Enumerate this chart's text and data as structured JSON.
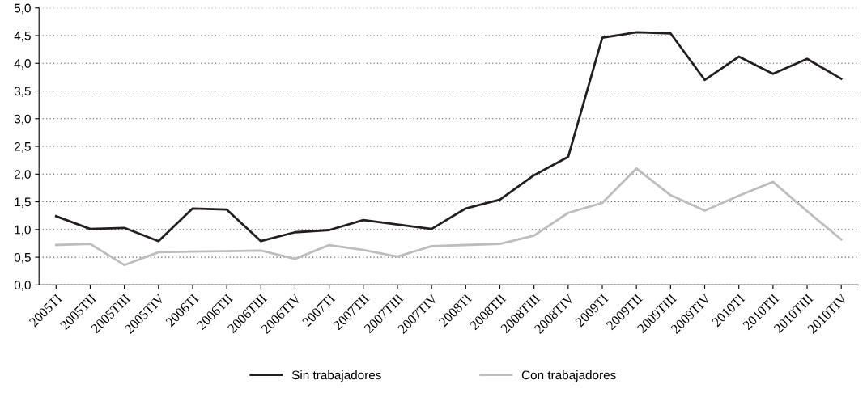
{
  "chart_data": {
    "type": "line",
    "categories": [
      "2005TI",
      "2005TII",
      "2005TIII",
      "2005TIV",
      "2006TI",
      "2006TII",
      "2006TIII",
      "2006TIV",
      "2007TI",
      "2007TII",
      "2007TIII",
      "2007TIV",
      "2008TI",
      "2008TII",
      "2008TIII",
      "2008TIV",
      "2009TI",
      "2009TII",
      "2009TIII",
      "2009TIV",
      "2010TI",
      "2010TII",
      "2010TIII",
      "2010TIV"
    ],
    "series": [
      {
        "name": "Sin trabajadores",
        "color": "#231f20",
        "values": [
          1.24,
          1.01,
          1.03,
          0.79,
          1.38,
          1.36,
          0.79,
          0.95,
          0.99,
          1.17,
          1.09,
          1.01,
          1.38,
          1.54,
          1.98,
          2.31,
          4.46,
          4.56,
          4.54,
          3.7,
          4.12,
          3.81,
          4.08,
          3.72
        ]
      },
      {
        "name": "Con trabajadores",
        "color": "#bdbdbd",
        "values": [
          0.72,
          0.74,
          0.36,
          0.59,
          0.6,
          0.61,
          0.62,
          0.47,
          0.72,
          0.63,
          0.51,
          0.7,
          0.72,
          0.74,
          0.89,
          1.3,
          1.48,
          2.1,
          1.62,
          1.34,
          1.61,
          1.86,
          1.33,
          0.82
        ]
      }
    ],
    "ylim": [
      0,
      5
    ],
    "yticks": [
      {
        "value": 0,
        "label": "0,0"
      },
      {
        "value": 0.5,
        "label": "0,5"
      },
      {
        "value": 1,
        "label": "1,0"
      },
      {
        "value": 1.5,
        "label": "1,5"
      },
      {
        "value": 2,
        "label": "2,0"
      },
      {
        "value": 2.5,
        "label": "2,5"
      },
      {
        "value": 3,
        "label": "3,0"
      },
      {
        "value": 3.5,
        "label": "3,5"
      },
      {
        "value": 4,
        "label": "4,0"
      },
      {
        "value": 4.5,
        "label": "4,5"
      },
      {
        "value": 5,
        "label": "5,0"
      }
    ],
    "grid": "y",
    "legend": "bottom",
    "marker": "none",
    "line_style": "solid"
  }
}
